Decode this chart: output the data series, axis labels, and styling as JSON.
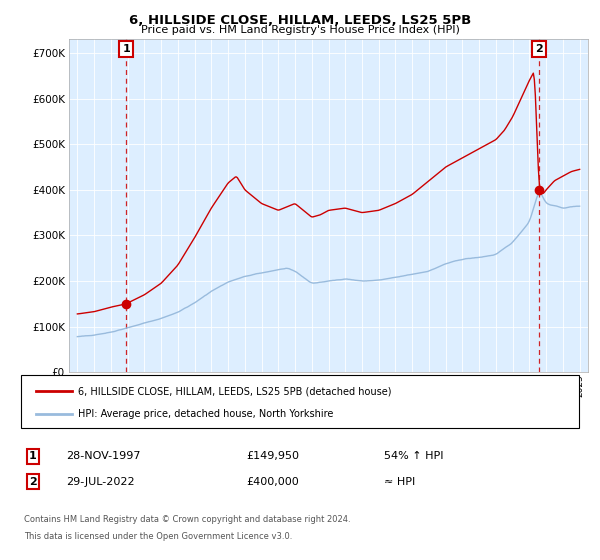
{
  "title": "6, HILLSIDE CLOSE, HILLAM, LEEDS, LS25 5PB",
  "subtitle": "Price paid vs. HM Land Registry's House Price Index (HPI)",
  "legend_line1": "6, HILLSIDE CLOSE, HILLAM, LEEDS, LS25 5PB (detached house)",
  "legend_line2": "HPI: Average price, detached house, North Yorkshire",
  "footer1": "Contains HM Land Registry data © Crown copyright and database right 2024.",
  "footer2": "This data is licensed under the Open Government Licence v3.0.",
  "annotation1_label": "1",
  "annotation1_date": "28-NOV-1997",
  "annotation1_price": "£149,950",
  "annotation1_hpi": "54% ↑ HPI",
  "annotation2_label": "2",
  "annotation2_date": "29-JUL-2022",
  "annotation2_price": "£400,000",
  "annotation2_hpi": "≈ HPI",
  "property_color": "#cc0000",
  "hpi_color": "#99bbdd",
  "dashed_color": "#cc0000",
  "plot_bg_color": "#ddeeff",
  "ylim": [
    0,
    730000
  ],
  "yticks": [
    0,
    100000,
    200000,
    300000,
    400000,
    500000,
    600000,
    700000
  ],
  "xlim_start": 1994.5,
  "xlim_end": 2025.5,
  "sale1_x": 1997.91,
  "sale1_y": 149950,
  "sale2_x": 2022.58,
  "sale2_y": 400000,
  "background_color": "#ffffff",
  "grid_color": "#ffffff"
}
